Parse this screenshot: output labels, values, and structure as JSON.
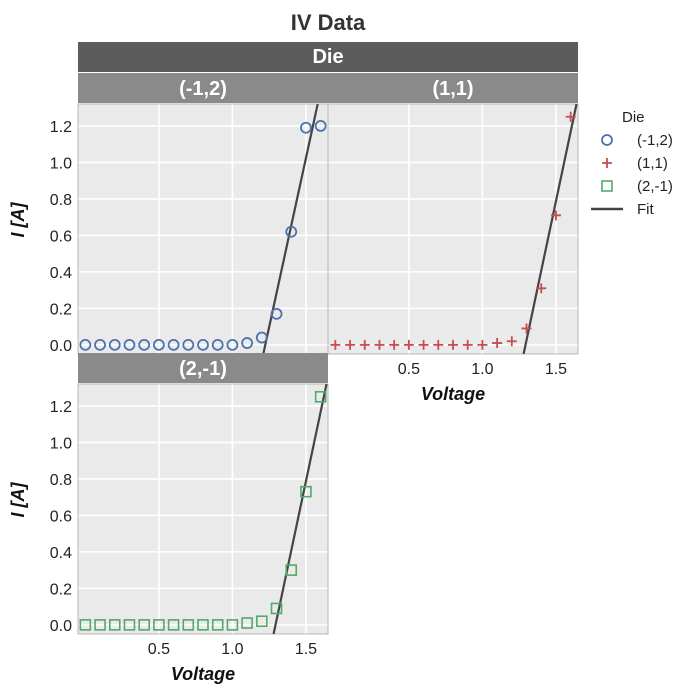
{
  "chart_data": {
    "type": "scatter",
    "title": "IV Data",
    "facet_title": "Die",
    "xlabel": "Voltage",
    "ylabel": "I [A]",
    "xlim": [
      -0.05,
      1.65
    ],
    "ylim": [
      -0.05,
      1.32
    ],
    "x_ticks": [
      0.5,
      1.0,
      1.5
    ],
    "x_tick_labels": [
      "0.5",
      "1.0",
      "1.5"
    ],
    "y_ticks": [
      0.0,
      0.2,
      0.4,
      0.6,
      0.8,
      1.0,
      1.2
    ],
    "y_tick_labels": [
      "0.0",
      "0.2",
      "0.4",
      "0.6",
      "0.8",
      "1.0",
      "1.2"
    ],
    "grid": true,
    "legend": {
      "title": "Die",
      "placement": "right",
      "entries": [
        {
          "label": "(-1,2)",
          "marker": "circle",
          "color": "#4c72b0"
        },
        {
          "label": "(1,1)",
          "marker": "plus",
          "color": "#c44e52"
        },
        {
          "label": "(2,-1)",
          "marker": "square",
          "color": "#55a868"
        },
        {
          "label": "Fit",
          "marker": "line",
          "color": "#444444"
        }
      ]
    },
    "panels": [
      {
        "name": "(-1,2)",
        "marker": "circle",
        "color": "#4c72b0",
        "x": [
          0.0,
          0.1,
          0.2,
          0.3,
          0.4,
          0.5,
          0.6,
          0.7,
          0.8,
          0.9,
          1.0,
          1.1,
          1.2,
          1.3,
          1.4,
          1.5,
          1.6
        ],
        "y": [
          0.0,
          0.0,
          0.0,
          0.0,
          0.0,
          0.0,
          0.0,
          0.0,
          0.0,
          0.0,
          0.0,
          0.01,
          0.04,
          0.17,
          0.62,
          1.19,
          1.2
        ],
        "fit": {
          "x": [
            1.21,
            1.58
          ],
          "y": [
            -0.05,
            1.32
          ]
        }
      },
      {
        "name": "(1,1)",
        "marker": "plus",
        "color": "#c44e52",
        "x": [
          0.0,
          0.1,
          0.2,
          0.3,
          0.4,
          0.5,
          0.6,
          0.7,
          0.8,
          0.9,
          1.0,
          1.1,
          1.2,
          1.3,
          1.4,
          1.5,
          1.6
        ],
        "y": [
          0.0,
          0.0,
          0.0,
          0.0,
          0.0,
          0.0,
          0.0,
          0.0,
          0.0,
          0.0,
          0.0,
          0.01,
          0.02,
          0.09,
          0.31,
          0.71,
          1.25
        ],
        "fit": {
          "x": [
            1.28,
            1.64
          ],
          "y": [
            -0.05,
            1.32
          ]
        }
      },
      {
        "name": "(2,-1)",
        "marker": "square",
        "color": "#55a868",
        "x": [
          0.0,
          0.1,
          0.2,
          0.3,
          0.4,
          0.5,
          0.6,
          0.7,
          0.8,
          0.9,
          1.0,
          1.1,
          1.2,
          1.3,
          1.4,
          1.5,
          1.6
        ],
        "y": [
          0.0,
          0.0,
          0.0,
          0.0,
          0.0,
          0.0,
          0.0,
          0.0,
          0.0,
          0.0,
          0.0,
          0.01,
          0.02,
          0.09,
          0.3,
          0.73,
          1.25
        ],
        "fit": {
          "x": [
            1.28,
            1.64
          ],
          "y": [
            -0.05,
            1.32
          ]
        }
      }
    ]
  }
}
